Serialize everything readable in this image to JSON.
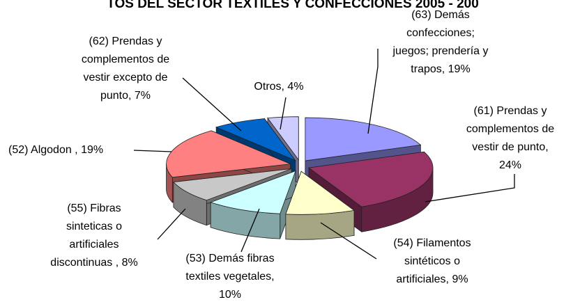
{
  "chart_data": {
    "type": "pie3d",
    "title": "TOS DEL SECTOR TEXTILES Y CONFECCIONES 2005 - 200",
    "categories": [
      [
        "(63) Demás",
        "confecciones;",
        "juegos; prendería y",
        "trapos, 19%"
      ],
      [
        "(61) Prendas y",
        "complementos de",
        "vestir de punto,",
        "24%"
      ],
      [
        "(54) Filamentos",
        "sintéticos o",
        "artificiales, 9%"
      ],
      [
        "(53) Demás fibras",
        "textiles vegetales,",
        "10%"
      ],
      [
        "(55) Fibras",
        "sinteticas o",
        "artificiales",
        "discontinuas , 8%"
      ],
      [
        "(52) Algodon , 19%"
      ],
      [
        "(62) Prendas y",
        "complementos de",
        "vestir excepto de",
        "punto, 7%"
      ],
      [
        "Otros, 4%"
      ]
    ],
    "values": [
      19,
      24,
      9,
      10,
      8,
      19,
      7,
      4
    ],
    "colors": [
      "#9999ff",
      "#993366",
      "#ffffcc",
      "#ccffff",
      "#c8c8c8",
      "#ff8080",
      "#0066cc",
      "#ccccff"
    ]
  }
}
